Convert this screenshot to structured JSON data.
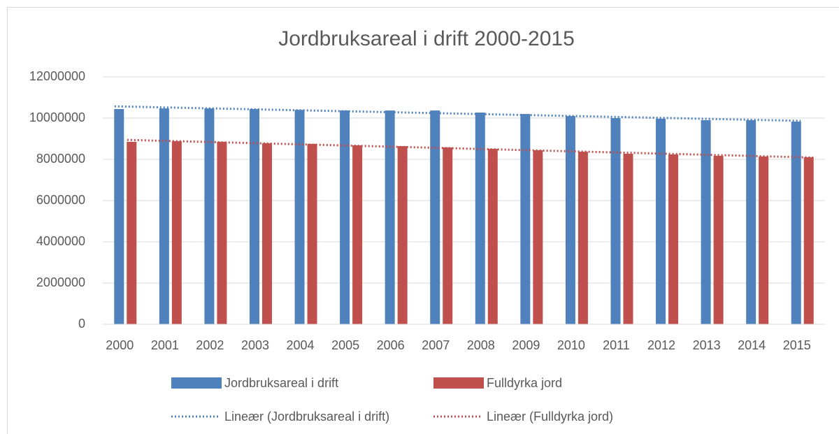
{
  "chart_data": {
    "type": "bar",
    "title": "Jordbruksareal i drift 2000-2015",
    "categories": [
      "2000",
      "2001",
      "2002",
      "2003",
      "2004",
      "2005",
      "2006",
      "2007",
      "2008",
      "2009",
      "2010",
      "2011",
      "2012",
      "2013",
      "2014",
      "2015"
    ],
    "series": [
      {
        "name": "Jordbruksareal i drift",
        "color": "#4f81bd",
        "values": [
          10440000,
          10470000,
          10470000,
          10440000,
          10400000,
          10370000,
          10370000,
          10370000,
          10270000,
          10200000,
          10100000,
          10000000,
          9970000,
          9900000,
          9900000,
          9830000
        ],
        "trendline": {
          "type": "linear",
          "name": "Lineær (Jordbruksareal i drift)",
          "color": "#4f81bd"
        }
      },
      {
        "name": "Fulldyrka jord",
        "color": "#c0504d",
        "values": [
          8850000,
          8880000,
          8850000,
          8780000,
          8750000,
          8680000,
          8640000,
          8580000,
          8510000,
          8440000,
          8370000,
          8270000,
          8240000,
          8170000,
          8140000,
          8100000
        ],
        "trendline": {
          "type": "linear",
          "name": "Lineær (Fulldyrka jord)",
          "color": "#c0504d"
        }
      }
    ],
    "ylim": [
      0,
      12000000
    ],
    "yticks": [
      0,
      2000000,
      4000000,
      6000000,
      8000000,
      10000000,
      12000000
    ],
    "grid": true
  }
}
